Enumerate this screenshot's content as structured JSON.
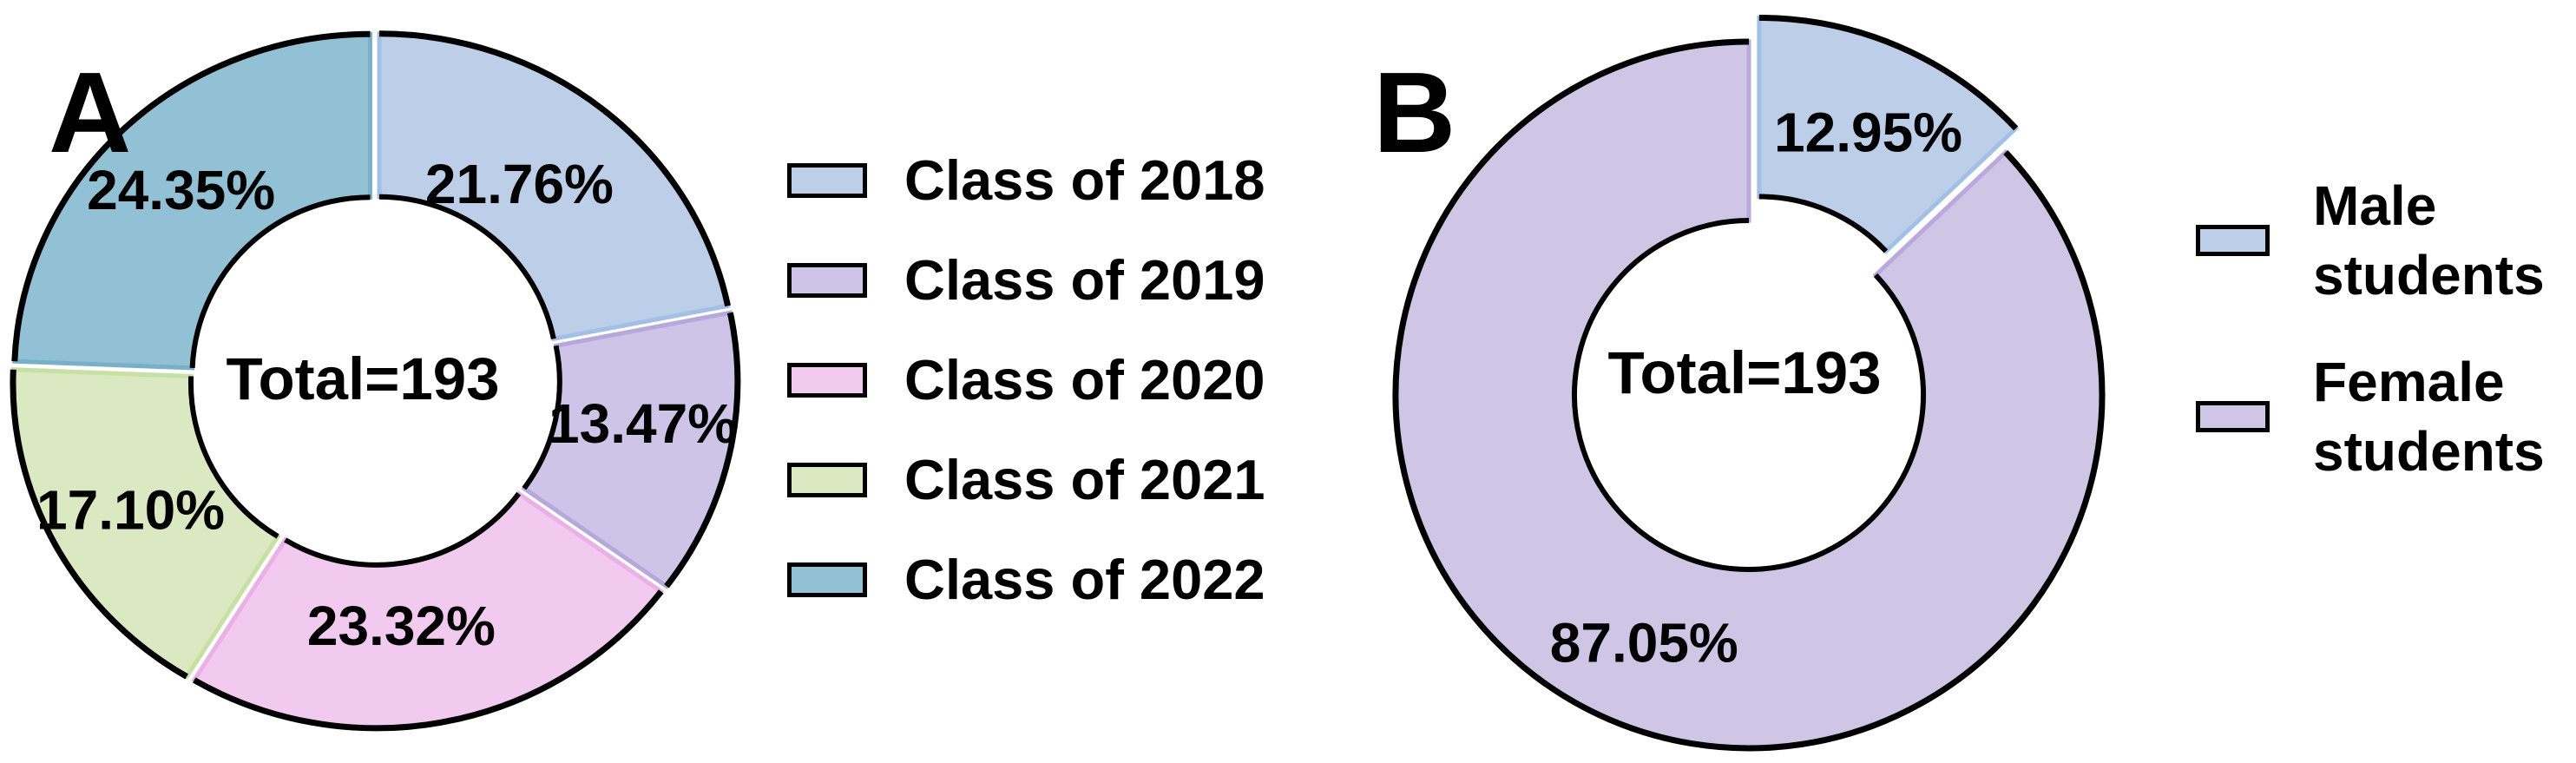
{
  "panels": {
    "a": "A",
    "b": "B"
  },
  "chart_data": [
    {
      "id": "A",
      "type": "donut",
      "center_label": "Total=193",
      "total": 193,
      "legend_position": "right",
      "slices": [
        {
          "name": "Class of 2018",
          "pct": 21.76,
          "label": "21.76%",
          "fill": "#bdcfe8",
          "edge": "#a2c0e6"
        },
        {
          "name": "Class of 2019",
          "pct": 13.47,
          "label": "13.47%",
          "fill": "#cec4e7",
          "edge": "#b7a8dc"
        },
        {
          "name": "Class of 2020",
          "pct": 23.32,
          "label": "23.32%",
          "fill": "#f2c9ef",
          "edge": "#e9b1e5"
        },
        {
          "name": "Class of 2021",
          "pct": 17.1,
          "label": "17.10%",
          "fill": "#dbe9c3",
          "edge": "#c8dfa5"
        },
        {
          "name": "Class of 2022",
          "pct": 24.35,
          "label": "24.35%",
          "fill": "#92c1d5",
          "edge": "#79b0c8"
        }
      ]
    },
    {
      "id": "B",
      "type": "donut",
      "center_label": "Total=193",
      "total": 193,
      "legend_position": "right",
      "slices": [
        {
          "name": "Male students",
          "pct": 12.95,
          "label": "12.95%",
          "fill": "#bdcfe8",
          "edge": "#a2c0e6"
        },
        {
          "name": "Female students",
          "pct": 87.05,
          "label": "87.05%",
          "fill": "#cec6e4",
          "edge": "#bba9dd"
        }
      ]
    }
  ],
  "legendA": {
    "items": [
      {
        "label": "Class of 2018",
        "color": "#bdcfe8"
      },
      {
        "label": "Class of 2019",
        "color": "#cec4e7"
      },
      {
        "label": "Class of 2020",
        "color": "#f2c9ef"
      },
      {
        "label": "Class of 2021",
        "color": "#dbe9c3"
      },
      {
        "label": "Class of 2022",
        "color": "#92c1d5"
      }
    ]
  },
  "legendB": {
    "items": [
      {
        "label_line1": "Male",
        "label_line2": "students",
        "color": "#bdcfe8"
      },
      {
        "label_line1": "Female",
        "label_line2": "students",
        "color": "#cec6e4"
      }
    ]
  },
  "colors": {
    "outline": "#000000",
    "background": "#ffffff",
    "text": "#000000"
  }
}
